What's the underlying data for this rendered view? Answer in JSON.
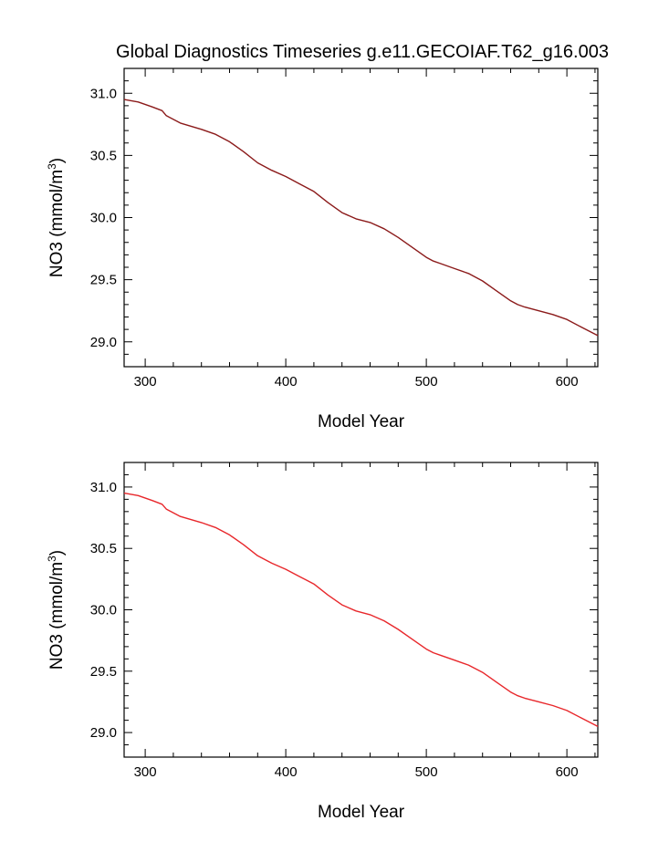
{
  "title": "Global Diagnostics Timeseries g.e11.GECOIAF.T62_g16.003",
  "chart_data": [
    {
      "type": "line",
      "xlabel": "Model Year",
      "ylabel": "NO3 (mmol/m",
      "ylabel_superscript": "3",
      "ylabel_suffix": ")",
      "xlim": [
        285,
        622
      ],
      "ylim": [
        28.8,
        31.2
      ],
      "xticks": [
        300,
        400,
        500,
        600
      ],
      "yticks": [
        29.0,
        29.5,
        30.0,
        30.5,
        31.0
      ],
      "ytick_labels": [
        "29.0",
        "29.5",
        "30.0",
        "30.5",
        "31.0"
      ],
      "x_minor_step": 20,
      "y_minor_step": 0.1,
      "line_color": "#8b1a1a",
      "series": [
        {
          "x": [
            285,
            295,
            305,
            312,
            315,
            325,
            340,
            350,
            360,
            370,
            380,
            390,
            400,
            410,
            420,
            430,
            440,
            450,
            460,
            470,
            480,
            490,
            500,
            505,
            510,
            520,
            530,
            540,
            550,
            560,
            565,
            570,
            580,
            590,
            600,
            610,
            622
          ],
          "y": [
            30.95,
            30.93,
            30.89,
            30.86,
            30.82,
            30.76,
            30.71,
            30.67,
            30.61,
            30.53,
            30.44,
            30.38,
            30.33,
            30.27,
            30.21,
            30.12,
            30.04,
            29.99,
            29.96,
            29.91,
            29.84,
            29.76,
            29.68,
            29.65,
            29.63,
            29.59,
            29.55,
            29.49,
            29.41,
            29.33,
            29.3,
            29.28,
            29.25,
            29.22,
            29.18,
            29.12,
            29.05
          ]
        }
      ]
    },
    {
      "type": "line",
      "xlabel": "Model Year",
      "ylabel": "NO3 (mmol/m",
      "ylabel_superscript": "3",
      "ylabel_suffix": ")",
      "xlim": [
        285,
        622
      ],
      "ylim": [
        28.8,
        31.2
      ],
      "xticks": [
        300,
        400,
        500,
        600
      ],
      "yticks": [
        29.0,
        29.5,
        30.0,
        30.5,
        31.0
      ],
      "ytick_labels": [
        "29.0",
        "29.5",
        "30.0",
        "30.5",
        "31.0"
      ],
      "x_minor_step": 20,
      "y_minor_step": 0.1,
      "line_color": "#e8272b",
      "series": [
        {
          "x": [
            285,
            295,
            305,
            312,
            315,
            325,
            340,
            350,
            360,
            370,
            380,
            390,
            400,
            410,
            420,
            430,
            440,
            450,
            460,
            470,
            480,
            490,
            500,
            505,
            510,
            520,
            530,
            540,
            550,
            560,
            565,
            570,
            580,
            590,
            600,
            610,
            622
          ],
          "y": [
            30.95,
            30.93,
            30.89,
            30.86,
            30.82,
            30.76,
            30.71,
            30.67,
            30.61,
            30.53,
            30.44,
            30.38,
            30.33,
            30.27,
            30.21,
            30.12,
            30.04,
            29.99,
            29.96,
            29.91,
            29.84,
            29.76,
            29.68,
            29.65,
            29.63,
            29.59,
            29.55,
            29.49,
            29.41,
            29.33,
            29.3,
            29.28,
            29.25,
            29.22,
            29.18,
            29.12,
            29.05
          ]
        }
      ]
    }
  ]
}
